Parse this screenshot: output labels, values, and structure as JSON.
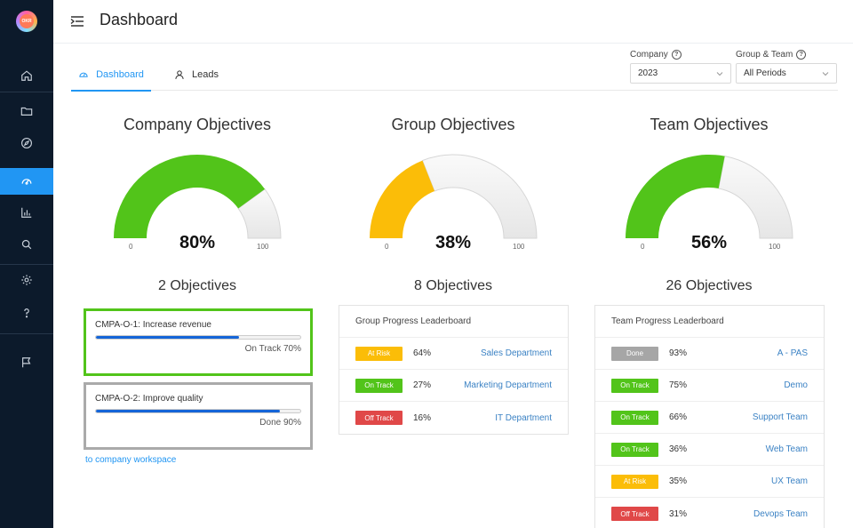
{
  "header": {
    "title": "Dashboard"
  },
  "tabs": [
    {
      "label": "Dashboard",
      "icon": "dashboard-icon",
      "active": true
    },
    {
      "label": "Leads",
      "icon": "user-icon",
      "active": false
    }
  ],
  "filters": {
    "company": {
      "label": "Company",
      "value": "2023"
    },
    "group_team": {
      "label": "Group & Team",
      "value": "All Periods"
    }
  },
  "gauges": [
    {
      "title": "Company Objectives",
      "percent_label": "80%",
      "percent": 80,
      "color": "#52c41a",
      "min": "0",
      "max": "100",
      "count_label": "2 Objectives"
    },
    {
      "title": "Group Objectives",
      "percent_label": "38%",
      "percent": 38,
      "color": "#fbbd08",
      "min": "0",
      "max": "100",
      "count_label": "8 Objectives"
    },
    {
      "title": "Team Objectives",
      "percent_label": "56%",
      "percent": 56,
      "color": "#52c41a",
      "min": "0",
      "max": "100",
      "count_label": "26 Objectives"
    }
  ],
  "company_objectives": [
    {
      "name": "CMPA-O-1: Increase revenue",
      "status": "On Track 70%",
      "progress": 70,
      "border": "green"
    },
    {
      "name": "CMPA-O-2: Improve quality",
      "status": "Done 90%",
      "progress": 90,
      "border": "grey"
    }
  ],
  "workspace_link": "to company workspace",
  "group_board": {
    "title": "Group Progress Leaderboard",
    "rows": [
      {
        "badge": "At Risk",
        "color": "#fbbd08",
        "pct": "64%",
        "name": "Sales Department"
      },
      {
        "badge": "On Track",
        "color": "#52c41a",
        "pct": "27%",
        "name": "Marketing Department"
      },
      {
        "badge": "Off Track",
        "color": "#e04848",
        "pct": "16%",
        "name": "IT Department"
      }
    ]
  },
  "team_board": {
    "title": "Team Progress Leaderboard",
    "rows": [
      {
        "badge": "Done",
        "color": "#a6a6a6",
        "pct": "93%",
        "name": "A - PAS"
      },
      {
        "badge": "On Track",
        "color": "#52c41a",
        "pct": "75%",
        "name": "Demo"
      },
      {
        "badge": "On Track",
        "color": "#52c41a",
        "pct": "66%",
        "name": "Support Team"
      },
      {
        "badge": "On Track",
        "color": "#52c41a",
        "pct": "36%",
        "name": "Web Team"
      },
      {
        "badge": "At Risk",
        "color": "#fbbd08",
        "pct": "35%",
        "name": "UX Team"
      },
      {
        "badge": "Off Track",
        "color": "#e04848",
        "pct": "31%",
        "name": "Devops Team"
      }
    ]
  },
  "sidebar": {
    "items": [
      {
        "icon": "home-icon"
      },
      {
        "icon": "folder-icon"
      },
      {
        "icon": "compass-icon"
      },
      {
        "icon": "dashboard-icon",
        "active": true
      },
      {
        "icon": "bar-chart-icon"
      },
      {
        "icon": "search-icon"
      },
      {
        "icon": "gear-icon"
      },
      {
        "icon": "question-icon"
      },
      {
        "icon": "flag-icon"
      }
    ]
  }
}
